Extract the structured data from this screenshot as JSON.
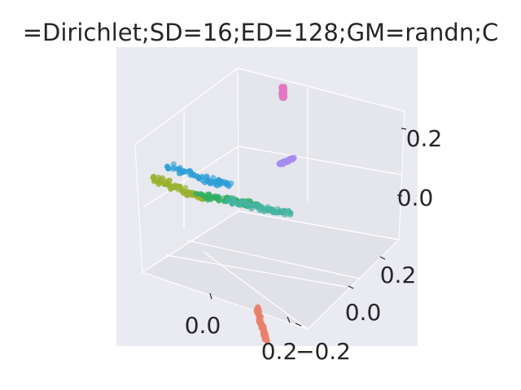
{
  "chart_data": {
    "type": "scatter",
    "projection": "3d",
    "title": "=Dirichlet;SD=16;ED=128;GM=randn;C",
    "xlabel": "",
    "ylabel": "",
    "zlabel": "",
    "x_ticks": [
      "0.0",
      "0.2"
    ],
    "y_ticks": [
      "−0.2",
      "0.0",
      "0.2"
    ],
    "z_ticks": [
      "0.0",
      "0.2"
    ],
    "grid": true,
    "legend": "none",
    "background": "#eaeaf2",
    "series": [
      {
        "color": "#e377c2",
        "points": [
          [
            -0.05,
            0.22,
            0.26
          ],
          [
            -0.05,
            0.22,
            0.24
          ],
          [
            -0.05,
            0.22,
            0.22
          ]
        ]
      },
      {
        "color": "#a68cf0",
        "points": [
          [
            0.0,
            0.15,
            0.08
          ],
          [
            0.01,
            0.16,
            0.09
          ],
          [
            0.02,
            0.17,
            0.1
          ]
        ]
      },
      {
        "color": "#e8806b",
        "points": [
          [
            0.16,
            -0.12,
            -0.1
          ],
          [
            0.19,
            -0.14,
            -0.12
          ],
          [
            0.22,
            -0.16,
            -0.14
          ]
        ]
      },
      {
        "color": "#2e9fd6",
        "points": [
          [
            -0.2,
            0.0,
            0.04
          ],
          [
            -0.1,
            0.02,
            0.05
          ],
          [
            -0.05,
            0.03,
            0.06
          ]
        ]
      },
      {
        "color": "#9ab12e",
        "points": [
          [
            -0.22,
            -0.02,
            0.0
          ],
          [
            -0.15,
            -0.01,
            0.0
          ],
          [
            -0.1,
            0.0,
            0.0
          ]
        ]
      },
      {
        "color": "#2fae62",
        "points": [
          [
            -0.12,
            0.02,
            -0.02
          ],
          [
            -0.05,
            0.05,
            -0.01
          ],
          [
            0.0,
            0.07,
            0.0
          ]
        ]
      },
      {
        "color": "#45b3a0",
        "points": [
          [
            -0.05,
            0.04,
            0.0
          ],
          [
            0.02,
            0.06,
            0.01
          ],
          [
            0.08,
            0.08,
            0.02
          ]
        ]
      }
    ]
  }
}
